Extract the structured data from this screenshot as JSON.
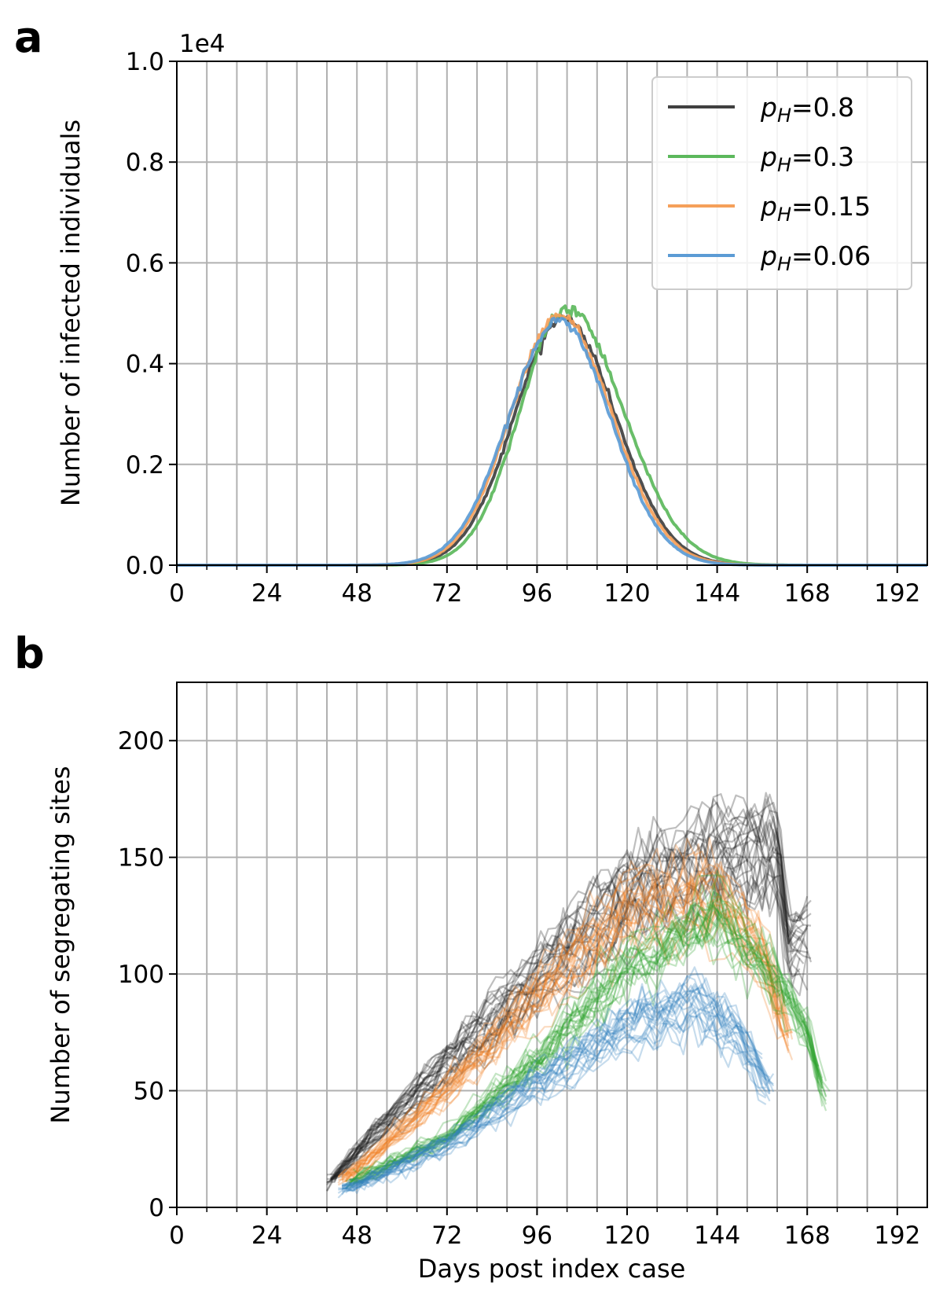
{
  "chart_data": [
    {
      "type": "line",
      "panel": "a",
      "xlabel": "",
      "ylabel": "Number of infected individuals",
      "y_scale_note": "1e4",
      "xlim": [
        0,
        200
      ],
      "ylim": [
        0,
        1.0
      ],
      "xticks": [
        0,
        24,
        48,
        72,
        96,
        120,
        144,
        168,
        192
      ],
      "yticks": [
        0.0,
        0.2,
        0.4,
        0.6,
        0.8,
        1.0
      ],
      "ytick_labels": [
        "0.0",
        "0.2",
        "0.4",
        "0.6",
        "0.8",
        "1.0"
      ],
      "grid": true,
      "legend_position": "top-right",
      "series": [
        {
          "name_prefix": "p",
          "name_sub": "H",
          "name_value": "=0.8",
          "color": "#404040",
          "peak_day": 103,
          "peak": 0.49,
          "width_rise": 13.0,
          "width_fall": 14.0
        },
        {
          "name_prefix": "p",
          "name_sub": "H",
          "name_value": "=0.3",
          "color": "#5cb85c",
          "peak_day": 104,
          "peak": 0.51,
          "width_rise": 12.5,
          "width_fall": 15.0
        },
        {
          "name_prefix": "p",
          "name_sub": "H",
          "name_value": "=0.15",
          "color": "#f5a05a",
          "peak_day": 102,
          "peak": 0.495,
          "width_rise": 13.0,
          "width_fall": 14.0
        },
        {
          "name_prefix": "p",
          "name_sub": "H",
          "name_value": "=0.06",
          "color": "#5b9bd5",
          "peak_day": 102,
          "peak": 0.485,
          "width_rise": 13.5,
          "width_fall": 13.5
        }
      ]
    },
    {
      "type": "line",
      "panel": "b",
      "xlabel": "Days post index case",
      "ylabel": "Number of segregating sites",
      "xlim": [
        0,
        200
      ],
      "ylim": [
        0,
        225
      ],
      "xticks": [
        0,
        24,
        48,
        72,
        96,
        120,
        144,
        168,
        192
      ],
      "yticks": [
        0,
        50,
        100,
        150,
        200
      ],
      "grid": true,
      "series": [
        {
          "name": "pH=0.8",
          "color": "#1a1a1a",
          "replicates": 24,
          "points": [
            [
              40,
              10
            ],
            [
              48,
              24
            ],
            [
              72,
              62
            ],
            [
              96,
              98
            ],
            [
              120,
              133
            ],
            [
              144,
              150
            ],
            [
              160,
              152
            ],
            [
              163,
              110
            ],
            [
              168,
              116
            ]
          ]
        },
        {
          "name": "pH=0.15",
          "color": "#f07f22",
          "replicates": 22,
          "points": [
            [
              43,
              12
            ],
            [
              48,
              16
            ],
            [
              72,
              50
            ],
            [
              96,
              90
            ],
            [
              120,
              125
            ],
            [
              144,
              132
            ],
            [
              156,
              108
            ],
            [
              163,
              72
            ]
          ]
        },
        {
          "name": "pH=0.3",
          "color": "#2ca02c",
          "replicates": 22,
          "points": [
            [
              45,
              10
            ],
            [
              48,
              12
            ],
            [
              72,
              30
            ],
            [
              96,
              63
            ],
            [
              120,
              103
            ],
            [
              144,
              125
            ],
            [
              160,
              98
            ],
            [
              168,
              75
            ],
            [
              173,
              45
            ]
          ]
        },
        {
          "name": "pH=0.06",
          "color": "#3182bd",
          "replicates": 22,
          "points": [
            [
              43,
              8
            ],
            [
              48,
              10
            ],
            [
              72,
              28
            ],
            [
              96,
              55
            ],
            [
              120,
              80
            ],
            [
              138,
              90
            ],
            [
              150,
              75
            ],
            [
              158,
              52
            ]
          ]
        }
      ]
    }
  ],
  "labels": {
    "panel_a": "a",
    "panel_b": "b"
  }
}
